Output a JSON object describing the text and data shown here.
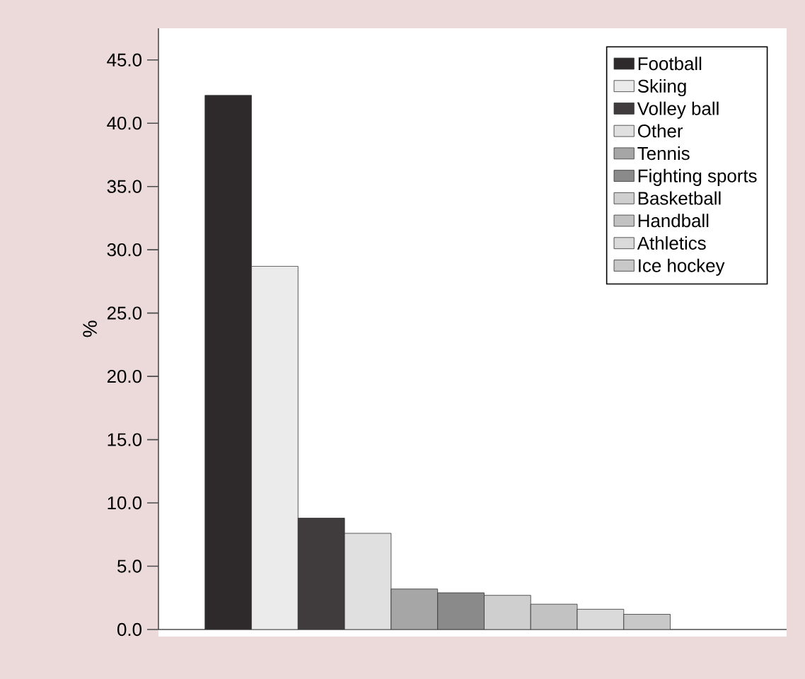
{
  "chart_data": {
    "type": "bar",
    "categories": [
      null
    ],
    "ylabel": "%",
    "ylim": [
      0,
      47.5
    ],
    "yticks": [
      {
        "value": 0,
        "label": "0.0"
      },
      {
        "value": 5,
        "label": "5.0"
      },
      {
        "value": 10,
        "label": "10.0"
      },
      {
        "value": 15,
        "label": "15.0"
      },
      {
        "value": 20,
        "label": "20.0"
      },
      {
        "value": 25,
        "label": "25.0"
      },
      {
        "value": 30,
        "label": "30.0"
      },
      {
        "value": 35,
        "label": "35.0"
      },
      {
        "value": 40,
        "label": "40.0"
      },
      {
        "value": 45,
        "label": "45.0"
      }
    ],
    "legend": "top right",
    "series": [
      {
        "name": "Football",
        "color": "#2e2a2b",
        "values": [
          42.2
        ]
      },
      {
        "name": "Skiing",
        "color": "#ebebeb",
        "values": [
          28.7
        ]
      },
      {
        "name": "Volley ball",
        "color": "#403c3d",
        "values": [
          8.8
        ]
      },
      {
        "name": "Other",
        "color": "#e0e0e0",
        "values": [
          7.6
        ]
      },
      {
        "name": "Tennis",
        "color": "#a6a6a6",
        "values": [
          3.2
        ]
      },
      {
        "name": "Fighting sports",
        "color": "#8a8a8a",
        "values": [
          2.9
        ]
      },
      {
        "name": "Basketball",
        "color": "#cfcfcf",
        "values": [
          2.7
        ]
      },
      {
        "name": "Handball",
        "color": "#c2c2c2",
        "values": [
          2.0
        ]
      },
      {
        "name": "Athletics",
        "color": "#dadada",
        "values": [
          1.6
        ]
      },
      {
        "name": "Ice hockey",
        "color": "#c8c8c8",
        "values": [
          1.2
        ]
      }
    ]
  }
}
